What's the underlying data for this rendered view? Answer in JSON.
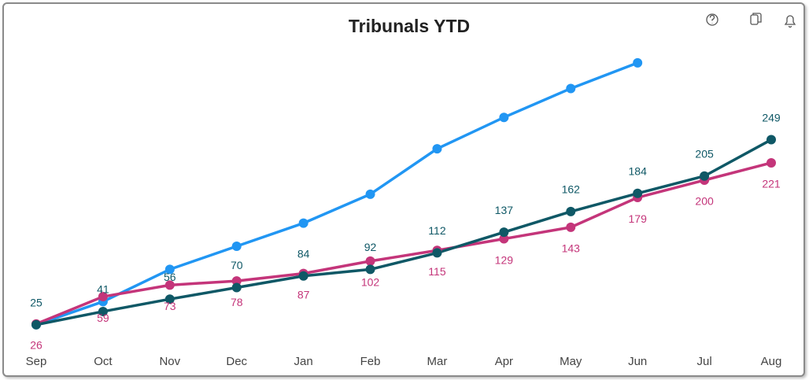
{
  "chart_data": {
    "type": "line",
    "title": "Tribunals YTD",
    "categories": [
      "Sep",
      "Oct",
      "Nov",
      "Dec",
      "Jan",
      "Feb",
      "Mar",
      "Apr",
      "May",
      "Jun",
      "Jul",
      "Aug"
    ],
    "series": [
      {
        "color": "#2196f3",
        "values": [
          25,
          53,
          92,
          120,
          148,
          183,
          238,
          276,
          311,
          342,
          null,
          null
        ],
        "show_labels": false
      },
      {
        "color": "#c4357a",
        "values": [
          26,
          59,
          73,
          78,
          87,
          102,
          115,
          129,
          143,
          179,
          200,
          221
        ],
        "show_labels": true,
        "label_side": "below"
      },
      {
        "color": "#0f5866",
        "values": [
          25,
          41,
          56,
          70,
          84,
          92,
          112,
          137,
          162,
          184,
          205,
          249
        ],
        "show_labels": true,
        "label_side": "above"
      }
    ],
    "ylim": [
      0,
      360
    ]
  }
}
